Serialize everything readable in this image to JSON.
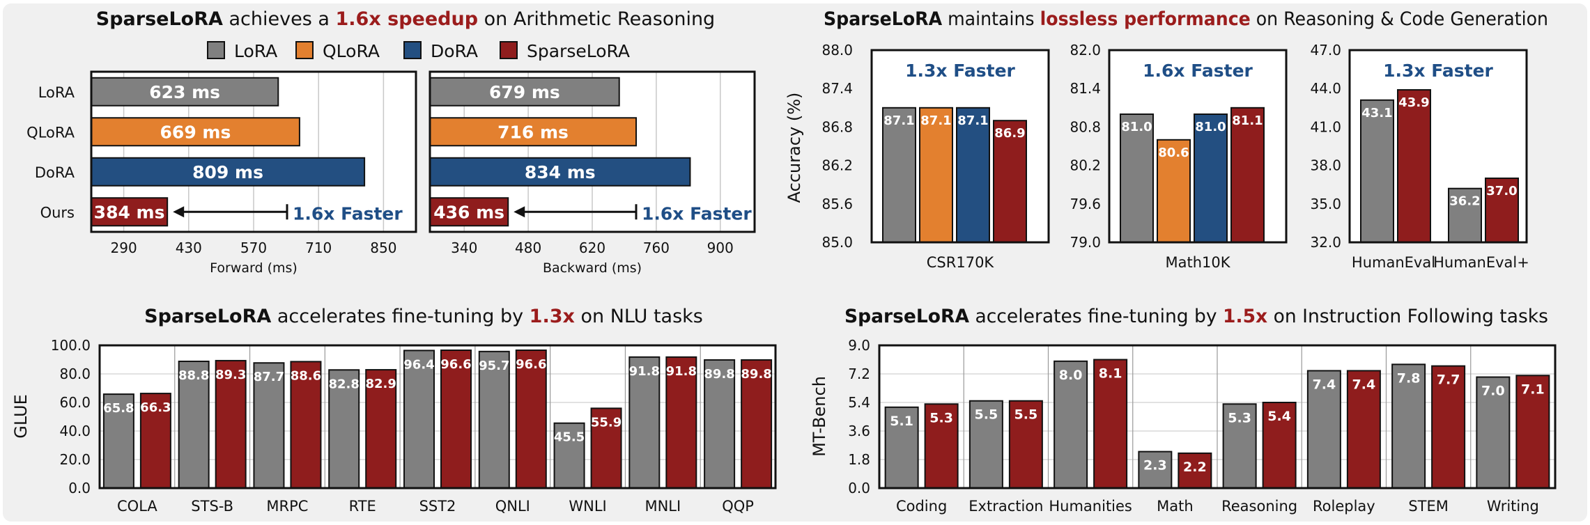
{
  "colors": {
    "LoRA": "#808080",
    "QLoRA": "#e3802f",
    "DoRA": "#234f81",
    "SparseLoRA": "#8f1d1d",
    "accent_red": "#9b1c1c",
    "accent_blue": "#1f4e86",
    "panel_bg": "#f0f0f0"
  },
  "legend": [
    "LoRA",
    "QLoRA",
    "DoRA",
    "SparseLoRA"
  ],
  "panels": {
    "p1": {
      "title": [
        "SparseLoRA",
        " achieves a ",
        "1.6x speedup",
        " on Arithmetic Reasoning"
      ]
    },
    "p2": {
      "title": [
        "SparseLoRA",
        " maintains ",
        "lossless performance",
        " on Reasoning & Code Generation"
      ],
      "ylabel": "Accuracy (%)"
    },
    "p3": {
      "title": [
        "SparseLoRA",
        " accelerates fine-tuning by ",
        "1.3x",
        " on NLU tasks"
      ],
      "ylabel": "GLUE"
    },
    "p4": {
      "title": [
        "SparseLoRA",
        " accelerates fine-tuning by ",
        "1.5x",
        " on Instruction Following tasks"
      ],
      "ylabel": "MT-Bench"
    }
  },
  "chart_data": [
    {
      "id": "forward",
      "type": "bar",
      "orientation": "horizontal",
      "categories": [
        "LoRA",
        "QLoRA",
        "DoRA",
        "Ours"
      ],
      "values": [
        623,
        669,
        809,
        384
      ],
      "value_labels": [
        "623 ms",
        "669 ms",
        "809 ms",
        "384 ms"
      ],
      "xlabel": "Forward (ms)",
      "xlim": [
        220,
        920
      ],
      "ticks": [
        290,
        430,
        570,
        710,
        850
      ],
      "tick_labels": [
        "290",
        "430",
        "570",
        "710",
        "850"
      ],
      "annotation": "1.6x Faster"
    },
    {
      "id": "backward",
      "type": "bar",
      "orientation": "horizontal",
      "categories": [
        "LoRA",
        "QLoRA",
        "DoRA",
        "Ours"
      ],
      "values": [
        679,
        716,
        834,
        436
      ],
      "value_labels": [
        "679 ms",
        "716 ms",
        "834 ms",
        "436 ms"
      ],
      "xlabel": "Backward (ms)",
      "xlim": [
        265,
        975
      ],
      "ticks": [
        340,
        480,
        620,
        760,
        900
      ],
      "tick_labels": [
        "340",
        "480",
        "620",
        "760",
        "900"
      ],
      "annotation": "1.6x Faster"
    },
    {
      "id": "csr",
      "type": "bar",
      "xlabel": "CSR170K",
      "series_names": [
        "LoRA",
        "QLoRA",
        "DoRA",
        "SparseLoRA"
      ],
      "values": [
        87.1,
        87.1,
        87.1,
        86.9
      ],
      "ylim": [
        85.0,
        88.0
      ],
      "ticks": [
        85.0,
        85.6,
        86.2,
        86.8,
        87.4,
        88.0
      ],
      "tick_labels": [
        "85.0",
        "85.6",
        "86.2",
        "86.8",
        "87.4",
        "88.0"
      ],
      "annotation": "1.3x Faster"
    },
    {
      "id": "math",
      "type": "bar",
      "xlabel": "Math10K",
      "series_names": [
        "LoRA",
        "QLoRA",
        "DoRA",
        "SparseLoRA"
      ],
      "values": [
        81.0,
        80.6,
        81.0,
        81.1
      ],
      "ylim": [
        79.0,
        82.0
      ],
      "ticks": [
        79.0,
        79.6,
        80.2,
        80.8,
        81.4,
        82.0
      ],
      "tick_labels": [
        "79.0",
        "79.6",
        "80.2",
        "80.8",
        "81.4",
        "82.0"
      ],
      "annotation": "1.6x Faster"
    },
    {
      "id": "code",
      "type": "bar",
      "categories": [
        "HumanEval",
        "HumanEval+"
      ],
      "series": [
        {
          "name": "LoRA",
          "values": [
            43.1,
            36.2
          ]
        },
        {
          "name": "SparseLoRA",
          "values": [
            43.9,
            37.0
          ]
        }
      ],
      "ylim": [
        32.0,
        47.0
      ],
      "ticks": [
        32.0,
        35.0,
        38.0,
        41.0,
        44.0,
        47.0
      ],
      "tick_labels": [
        "32.0",
        "35.0",
        "38.0",
        "41.0",
        "44.0",
        "47.0"
      ],
      "annotation": "1.3x Faster"
    },
    {
      "id": "glue",
      "type": "bar",
      "categories": [
        "COLA",
        "STS-B",
        "MRPC",
        "RTE",
        "SST2",
        "QNLI",
        "WNLI",
        "MNLI",
        "QQP"
      ],
      "series": [
        {
          "name": "LoRA",
          "values": [
            65.8,
            88.8,
            87.7,
            82.8,
            96.4,
            95.7,
            45.5,
            91.8,
            89.8
          ]
        },
        {
          "name": "SparseLoRA",
          "values": [
            66.3,
            89.3,
            88.6,
            82.9,
            96.6,
            96.6,
            55.9,
            91.8,
            89.8
          ]
        }
      ],
      "ylabel": "GLUE",
      "ylim": [
        0.0,
        100.0
      ],
      "ticks": [
        0,
        20,
        40,
        60,
        80,
        100
      ],
      "tick_labels": [
        "0.0",
        "20.0",
        "40.0",
        "60.0",
        "80.0",
        "100.0"
      ]
    },
    {
      "id": "mtbench",
      "type": "bar",
      "categories": [
        "Coding",
        "Extraction",
        "Humanities",
        "Math",
        "Reasoning",
        "Roleplay",
        "STEM",
        "Writing"
      ],
      "series": [
        {
          "name": "LoRA",
          "values": [
            5.1,
            5.5,
            8.0,
            2.3,
            5.3,
            7.4,
            7.8,
            7.0
          ]
        },
        {
          "name": "SparseLoRA",
          "values": [
            5.3,
            5.5,
            8.1,
            2.2,
            5.4,
            7.4,
            7.7,
            7.1
          ]
        }
      ],
      "ylabel": "MT-Bench",
      "ylim": [
        0.0,
        9.0
      ],
      "ticks": [
        0.0,
        1.8,
        3.6,
        5.4,
        7.2,
        9.0
      ],
      "tick_labels": [
        "0.0",
        "1.8",
        "3.6",
        "5.4",
        "7.2",
        "9.0"
      ]
    }
  ]
}
